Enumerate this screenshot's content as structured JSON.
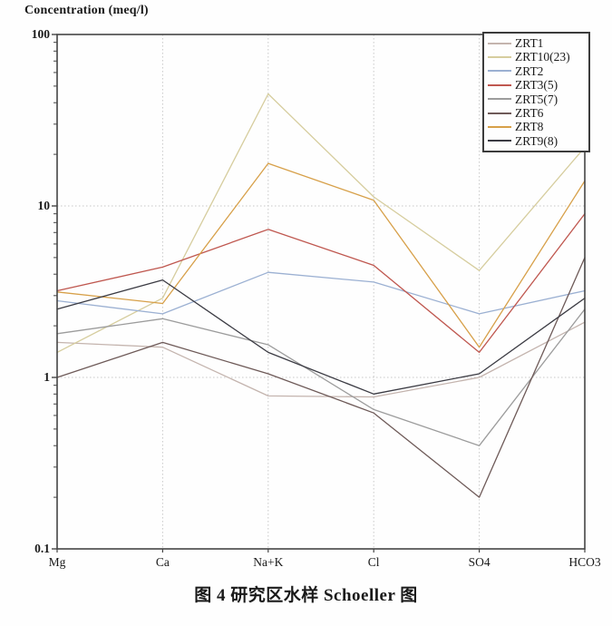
{
  "title": "Concentration (meq/l)",
  "caption": "图 4  研究区水样 Schoeller 图",
  "colors": {
    "frame": "#454545",
    "grid": "#c8c8c8",
    "background": "#fefefe",
    "text": "#1a1a1a"
  },
  "chart_data": {
    "type": "line",
    "title": "Concentration (meq/l)",
    "xlabel": "",
    "ylabel": "Concentration (meq/l)",
    "y_scale": "log",
    "ylim": [
      0.1,
      100
    ],
    "y_tick_labels": [
      "100",
      "10",
      "1",
      "0.1"
    ],
    "y_tick_values": [
      100,
      10,
      1,
      0.1
    ],
    "grid": "dotted, vertical at each category and horizontal at decades",
    "legend_position": "top-right",
    "categories": [
      "Mg",
      "Ca",
      "Na+K",
      "Cl",
      "SO4",
      "HCO3"
    ],
    "series": [
      {
        "name": "ZRT1",
        "color": "#c4b4ae",
        "values": [
          1.6,
          1.5,
          0.78,
          0.77,
          1.0,
          2.1
        ]
      },
      {
        "name": "ZRT10(23)",
        "color": "#d6cd9e",
        "values": [
          1.4,
          2.9,
          45,
          11.3,
          4.2,
          22
        ]
      },
      {
        "name": "ZRT2",
        "color": "#9bb0d2",
        "values": [
          2.8,
          2.35,
          4.1,
          3.6,
          2.35,
          3.2
        ]
      },
      {
        "name": "ZRT3(5)",
        "color": "#bf574f",
        "values": [
          3.2,
          4.4,
          7.3,
          4.5,
          1.4,
          9.0
        ]
      },
      {
        "name": "ZRT5(7)",
        "color": "#9c9c9c",
        "values": [
          1.8,
          2.2,
          1.55,
          0.65,
          0.4,
          2.5
        ]
      },
      {
        "name": "ZRT6",
        "color": "#6e5a58",
        "values": [
          1.0,
          1.6,
          1.05,
          0.62,
          0.2,
          5.0
        ]
      },
      {
        "name": "ZRT8",
        "color": "#d7a049",
        "values": [
          3.15,
          2.7,
          17.7,
          10.8,
          1.5,
          14
        ]
      },
      {
        "name": "ZRT9(8)",
        "color": "#3b3b43",
        "values": [
          2.5,
          3.7,
          1.4,
          0.8,
          1.05,
          2.9
        ]
      }
    ]
  }
}
